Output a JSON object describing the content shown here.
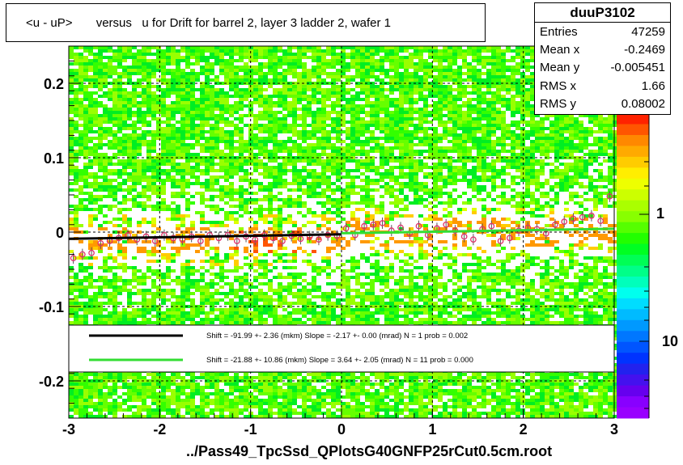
{
  "title": "<u - uP>       versus   u for Drift for barrel 2, layer 3 ladder 2, wafer 1",
  "stats": {
    "name": "duuP3102",
    "rows": [
      {
        "label": "Entries",
        "value": "47259"
      },
      {
        "label": "Mean x",
        "value": "-0.2469"
      },
      {
        "label": "Mean y",
        "value": "-0.005451"
      },
      {
        "label": "RMS x",
        "value": "1.66"
      },
      {
        "label": "RMS y",
        "value": "0.08002"
      }
    ]
  },
  "footer": "../Pass49_TpcSsd_QPlotsG40GNFP25rCut0.5cm.root",
  "chart_data": {
    "type": "heatmap",
    "xlim": [
      -3,
      3
    ],
    "ylim": [
      -0.25,
      0.25
    ],
    "x_ticks": [
      "-3",
      "-2",
      "-1",
      "0",
      "1",
      "2",
      "3"
    ],
    "y_ticks": [
      "-0.2",
      "-0.1",
      "0",
      "0.1",
      "0.2"
    ],
    "z_ticks": [
      "1",
      "10"
    ],
    "grid": true,
    "fits": [
      {
        "color": "#000000",
        "text": "Shift =   -91.99 +- 2.36 (mkm) Slope =    -2.17 +- 0.00 (mrad)  N = 1 prob = 0.002",
        "x": [
          -3,
          0
        ],
        "y": [
          -0.009,
          -0.003
        ]
      },
      {
        "color": "#33dd33",
        "text": "Shift =   -21.88 +- 10.86 (mkm) Slope =     3.64 +- 2.05 (mrad)  N = 11 prob = 0.000",
        "x": [
          0,
          3
        ],
        "y": [
          -0.0015,
          0.0045
        ]
      }
    ],
    "profile_points": {
      "x": [
        -2.95,
        -2.85,
        -2.75,
        -2.65,
        -2.55,
        -2.45,
        -2.35,
        -2.25,
        -2.15,
        -2.05,
        -1.95,
        -1.85,
        -1.75,
        -1.65,
        -1.55,
        -1.45,
        -1.35,
        -1.25,
        -1.15,
        -1.05,
        -0.95,
        -0.85,
        -0.75,
        -0.65,
        -0.55,
        -0.45,
        -0.35,
        -0.25,
        -0.15,
        -0.05,
        0.05,
        0.15,
        0.25,
        0.35,
        0.45,
        0.55,
        0.65,
        0.75,
        0.85,
        0.95,
        1.05,
        1.15,
        1.25,
        1.35,
        1.45,
        1.55,
        1.65,
        1.75,
        1.85,
        1.95,
        2.05,
        2.15,
        2.25,
        2.35,
        2.45,
        2.55,
        2.65,
        2.75,
        2.85,
        2.95
      ],
      "y": [
        -0.035,
        -0.03,
        -0.028,
        -0.015,
        -0.012,
        -0.008,
        -0.004,
        -0.01,
        -0.006,
        -0.012,
        -0.004,
        -0.008,
        -0.01,
        -0.006,
        -0.012,
        -0.004,
        -0.008,
        -0.004,
        -0.012,
        -0.006,
        -0.01,
        -0.004,
        -0.008,
        -0.012,
        -0.005,
        -0.009,
        -0.006,
        -0.01,
        -0.004,
        -0.005,
        0.005,
        -0.004,
        0.008,
        0.01,
        0.012,
        0.002,
        0.006,
        -0.002,
        0.008,
        -0.004,
        0.005,
        0.01,
        0.002,
        -0.006,
        -0.01,
        0.004,
        0.008,
        -0.012,
        -0.008,
        0.002,
        0.006,
        0.004,
        -0.002,
        0.01,
        0.014,
        0.018,
        0.02,
        0.022,
        0.015,
        0.048
      ]
    }
  }
}
